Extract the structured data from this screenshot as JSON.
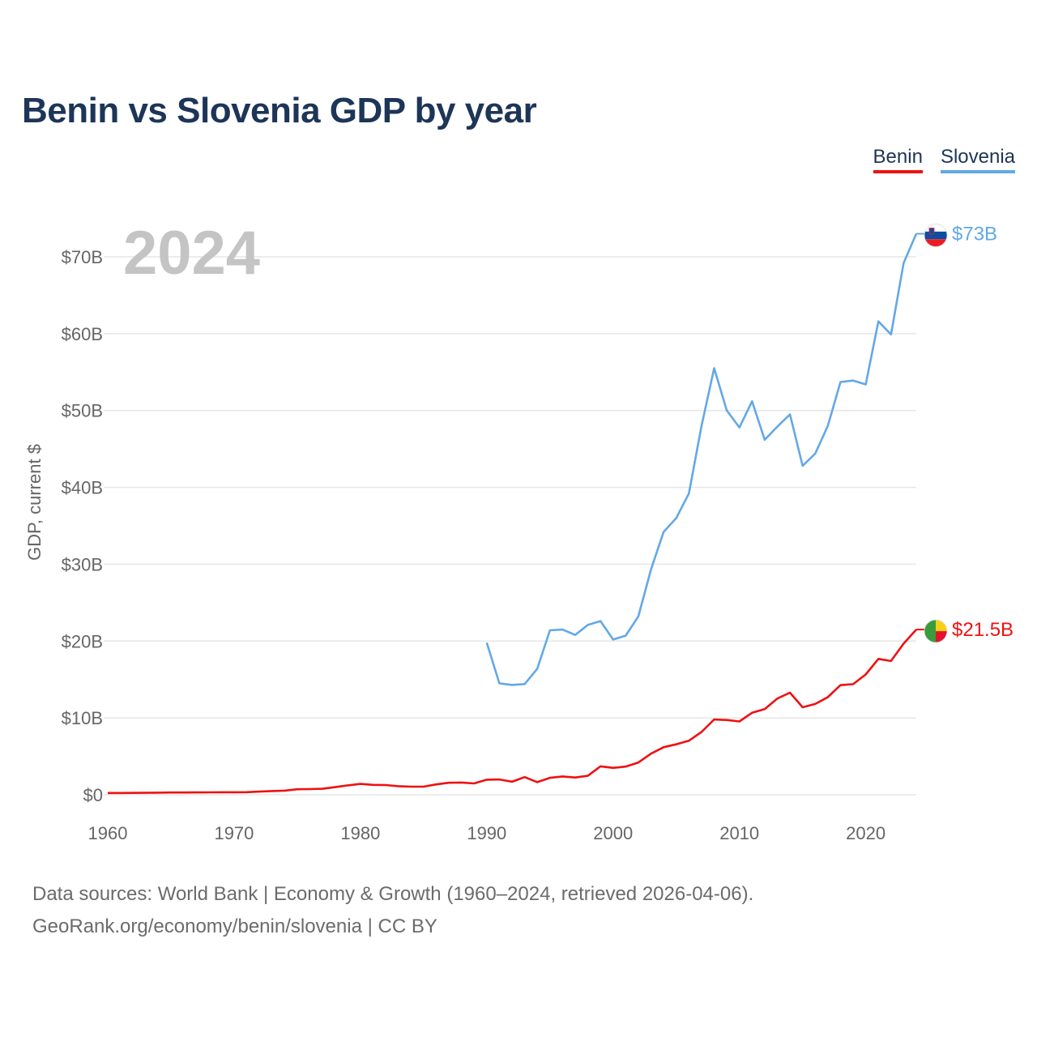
{
  "title": "Benin vs Slovenia GDP by year",
  "legend": [
    {
      "label": "Benin",
      "color": "#ee1111"
    },
    {
      "label": "Slovenia",
      "color": "#63a8e6"
    }
  ],
  "chart_data": {
    "type": "line",
    "title": "Benin vs Slovenia GDP by year",
    "ylabel": "GDP, current $",
    "xlabel": "",
    "xlim": [
      1960,
      2024
    ],
    "ylim": [
      0,
      73
    ],
    "x_ticks": [
      "1960",
      "1970",
      "1980",
      "1990",
      "2000",
      "2010",
      "2020"
    ],
    "y_ticks": [
      "$0",
      "$10B",
      "$20B",
      "$30B",
      "$40B",
      "$50B",
      "$60B",
      "$70B"
    ],
    "y_tick_values": [
      0,
      10,
      20,
      30,
      40,
      50,
      60,
      70
    ],
    "year_label": "2024",
    "units": "billions of current US$",
    "series": [
      {
        "name": "Benin",
        "color": "#ee1111",
        "end_label": "$21.5B",
        "x": [
          1960,
          1961,
          1962,
          1963,
          1964,
          1965,
          1966,
          1967,
          1968,
          1969,
          1970,
          1971,
          1972,
          1973,
          1974,
          1975,
          1976,
          1977,
          1978,
          1979,
          1980,
          1981,
          1982,
          1983,
          1984,
          1985,
          1986,
          1987,
          1988,
          1989,
          1990,
          1991,
          1992,
          1993,
          1994,
          1995,
          1996,
          1997,
          1998,
          1999,
          2000,
          2001,
          2002,
          2003,
          2004,
          2005,
          2006,
          2007,
          2008,
          2009,
          2010,
          2011,
          2012,
          2013,
          2014,
          2015,
          2016,
          2017,
          2018,
          2019,
          2020,
          2021,
          2022,
          2023,
          2024
        ],
        "values": [
          0.23,
          0.23,
          0.24,
          0.25,
          0.27,
          0.29,
          0.3,
          0.31,
          0.32,
          0.33,
          0.33,
          0.34,
          0.41,
          0.49,
          0.54,
          0.72,
          0.74,
          0.78,
          0.99,
          1.22,
          1.41,
          1.29,
          1.27,
          1.12,
          1.05,
          1.05,
          1.35,
          1.56,
          1.59,
          1.48,
          1.96,
          1.99,
          1.7,
          2.3,
          1.64,
          2.2,
          2.38,
          2.25,
          2.47,
          3.7,
          3.5,
          3.67,
          4.2,
          5.35,
          6.19,
          6.57,
          7.03,
          8.17,
          9.79,
          9.73,
          9.54,
          10.67,
          11.14,
          12.52,
          13.28,
          11.39,
          11.82,
          12.7,
          14.26,
          14.39,
          15.65,
          17.68,
          17.4,
          19.67,
          21.5
        ]
      },
      {
        "name": "Slovenia",
        "color": "#63a8e6",
        "end_label": "$73B",
        "x": [
          1990,
          1991,
          1992,
          1993,
          1994,
          1995,
          1996,
          1997,
          1998,
          1999,
          2000,
          2001,
          2002,
          2003,
          2004,
          2005,
          2006,
          2007,
          2008,
          2009,
          2010,
          2011,
          2012,
          2013,
          2014,
          2015,
          2016,
          2017,
          2018,
          2019,
          2020,
          2021,
          2022,
          2023,
          2024
        ],
        "values": [
          19.8,
          14.5,
          14.3,
          14.4,
          16.4,
          21.4,
          21.5,
          20.8,
          22.1,
          22.6,
          20.2,
          20.7,
          23.2,
          29.3,
          34.2,
          36.0,
          39.2,
          48.0,
          55.5,
          50.0,
          47.8,
          51.2,
          46.2,
          47.9,
          49.5,
          42.8,
          44.4,
          48.0,
          53.7,
          53.9,
          53.4,
          61.6,
          59.9,
          69.2,
          73.0
        ]
      }
    ]
  },
  "source": {
    "line1": "Data sources: World Bank | Economy & Growth (1960–2024, retrieved 2026-04-06).",
    "line2": "GeoRank.org/economy/benin/slovenia | CC BY"
  }
}
